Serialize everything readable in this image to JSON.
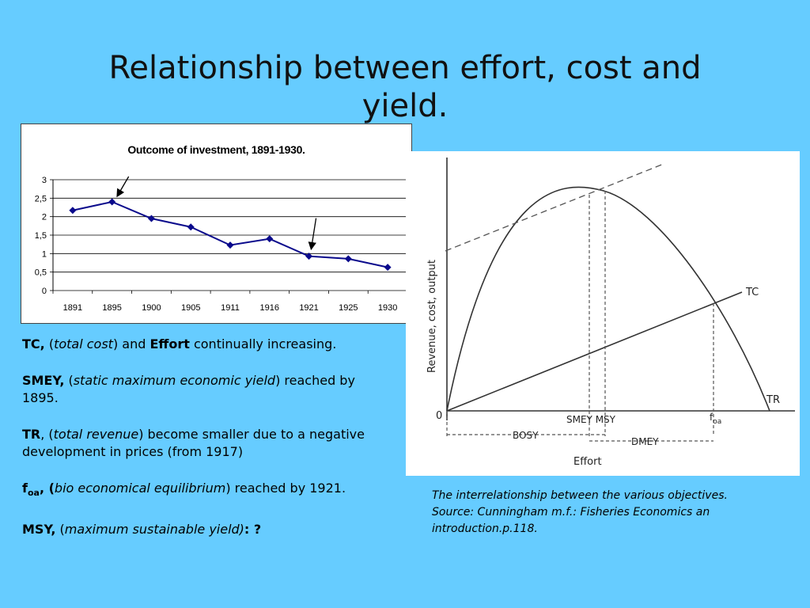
{
  "slide": {
    "title": "Relationship between effort, cost and yield."
  },
  "chart_data": {
    "type": "line",
    "title": "Outcome of investment, 1891-1930.",
    "categories": [
      "1891",
      "1895",
      "1900",
      "1905",
      "1911",
      "1916",
      "1921",
      "1925",
      "1930"
    ],
    "series": [
      {
        "values": [
          2.17,
          2.4,
          1.95,
          1.72,
          1.23,
          1.4,
          0.93,
          0.86,
          0.63
        ]
      }
    ],
    "y_ticks": [
      "0",
      "0,5",
      "1",
      "1,5",
      "2",
      "2,5",
      "3"
    ],
    "ylim": [
      0,
      3
    ],
    "grid": true,
    "xlabel": "",
    "ylabel": "",
    "line_color": "#0A0A8C",
    "annotations": [
      {
        "type": "arrow",
        "category": "1895"
      },
      {
        "type": "arrow",
        "category": "1921"
      }
    ]
  },
  "diagram": {
    "y_axis_label": "Revenue,  cost,  output",
    "x_axis_label": "Effort",
    "origin_label": "0",
    "tc_label": "TC",
    "tr_label": "TR",
    "smey_msy_label": "SMEY MSY",
    "foa_label": "f",
    "foa_sub": "oa",
    "bosy_label": "BOSY",
    "dmey_label": "DMEY"
  },
  "notes": {
    "tc": {
      "term": "TC,",
      "open": " (",
      "desc": "total cost",
      "mid": ") and ",
      "term2": "Effort",
      "rest": " continually increasing."
    },
    "smey": {
      "term": "SMEY,",
      "open": " (",
      "desc": "static maximum economic yield",
      "rest": ") reached by 1895."
    },
    "tr": {
      "term": "TR",
      "open": ", (",
      "desc": "total revenue",
      "rest": ") become smaller due to a negative development in prices (from 1917)"
    },
    "foa": {
      "term": "f",
      "sub": "oa",
      "open": ", (",
      "desc": "bio economical equilibrium",
      "rest": ") reached by 1921."
    },
    "msy": {
      "term": "MSY,",
      "open": " (",
      "desc": "maximum sustainable yield)",
      "rest": ": ?"
    }
  },
  "caption": {
    "line1": "The interrelationship between the various objectives.",
    "line2": "Source: Cunningham m.f.: Fisheries Economics an introduction.p.118."
  }
}
